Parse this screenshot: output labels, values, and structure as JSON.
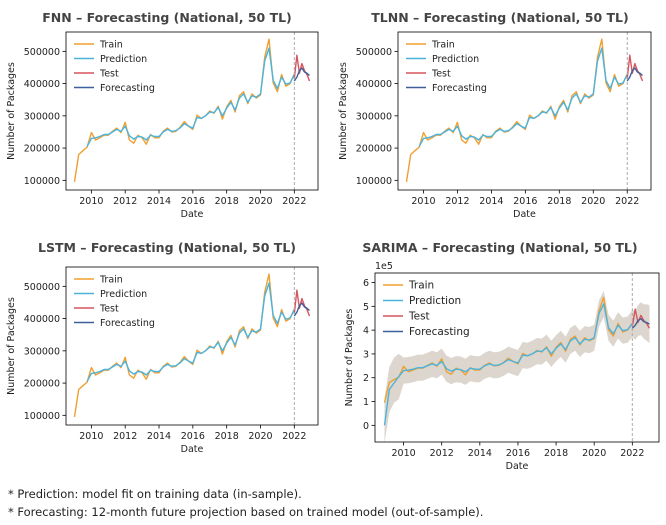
{
  "chart_data": [
    {
      "type": "line",
      "title": "FNN – Forecasting (National, 50 TL)",
      "xlabel": "Date",
      "ylabel": "Number of Packages",
      "xlim": [
        2008.5,
        2023.4
      ],
      "ylim": [
        70000,
        560000
      ],
      "xticks": [
        2010,
        2012,
        2014,
        2016,
        2018,
        2020,
        2022
      ],
      "yticks": [
        100000,
        200000,
        300000,
        400000,
        500000
      ],
      "ytick_labels": [
        "100000",
        "200000",
        "300000",
        "400000",
        "500000"
      ],
      "split_line_x": 2022.0,
      "legend": [
        "Train",
        "Prediction",
        "Test",
        "Forecasting"
      ],
      "legend_loc": "upper-left"
    },
    {
      "type": "line",
      "title": "TLNN – Forecasting (National, 50 TL)",
      "xlabel": "Date",
      "ylabel": "Number of Packages",
      "xlim": [
        2008.5,
        2023.4
      ],
      "ylim": [
        70000,
        560000
      ],
      "xticks": [
        2010,
        2012,
        2014,
        2016,
        2018,
        2020,
        2022
      ],
      "yticks": [
        100000,
        200000,
        300000,
        400000,
        500000
      ],
      "ytick_labels": [
        "100000",
        "200000",
        "300000",
        "400000",
        "500000"
      ],
      "split_line_x": 2022.0,
      "legend": [
        "Train",
        "Prediction",
        "Test",
        "Forecasting"
      ],
      "legend_loc": "upper-left"
    },
    {
      "type": "line",
      "title": "LSTM – Forecasting (National, 50 TL)",
      "xlabel": "Date",
      "ylabel": "Number of Packages",
      "xlim": [
        2008.5,
        2023.4
      ],
      "ylim": [
        70000,
        560000
      ],
      "xticks": [
        2010,
        2012,
        2014,
        2016,
        2018,
        2020,
        2022
      ],
      "yticks": [
        100000,
        200000,
        300000,
        400000,
        500000
      ],
      "ytick_labels": [
        "100000",
        "200000",
        "300000",
        "400000",
        "500000"
      ],
      "split_line_x": 2022.0,
      "legend": [
        "Train",
        "Prediction",
        "Test",
        "Forecasting"
      ],
      "legend_loc": "upper-left"
    },
    {
      "type": "line",
      "title": "SARIMA – Forecasting (National, 50 TL)",
      "xlabel": "Date",
      "ylabel": "Number of Packages",
      "xlim": [
        2008.5,
        2023.4
      ],
      "ylim": [
        -70000,
        640000
      ],
      "xticks": [
        2010,
        2012,
        2014,
        2016,
        2018,
        2020,
        2022
      ],
      "yticks": [
        0,
        100000,
        200000,
        300000,
        400000,
        500000,
        600000
      ],
      "ytick_labels": [
        "0",
        "1",
        "2",
        "3",
        "4",
        "5",
        "6"
      ],
      "y_offset_label": "1e5",
      "split_line_x": 2022.0,
      "confidence_band": true,
      "legend": [
        "Train",
        "Prediction",
        "Test",
        "Forecasting"
      ],
      "legend_loc": "upper-left"
    }
  ],
  "series_data": {
    "train": {
      "x": [
        2009.0,
        2009.25,
        2009.5,
        2009.75,
        2010.0,
        2010.25,
        2010.5,
        2010.75,
        2011.0,
        2011.25,
        2011.5,
        2011.75,
        2012.0,
        2012.25,
        2012.5,
        2012.75,
        2013.0,
        2013.25,
        2013.5,
        2013.75,
        2014.0,
        2014.25,
        2014.5,
        2014.75,
        2015.0,
        2015.25,
        2015.5,
        2015.75,
        2016.0,
        2016.25,
        2016.5,
        2016.75,
        2017.0,
        2017.25,
        2017.5,
        2017.75,
        2018.0,
        2018.25,
        2018.5,
        2018.75,
        2019.0,
        2019.25,
        2019.5,
        2019.75,
        2020.0,
        2020.25,
        2020.5,
        2020.75,
        2021.0,
        2021.25,
        2021.5,
        2021.75,
        2022.0
      ],
      "y": [
        95000,
        180000,
        192000,
        203000,
        248000,
        225000,
        232000,
        240000,
        240000,
        252000,
        262000,
        248000,
        280000,
        225000,
        215000,
        240000,
        232000,
        212000,
        242000,
        232000,
        232000,
        252000,
        262000,
        250000,
        252000,
        265000,
        282000,
        268000,
        258000,
        302000,
        292000,
        300000,
        315000,
        308000,
        330000,
        290000,
        328000,
        348000,
        312000,
        362000,
        375000,
        338000,
        368000,
        355000,
        365000,
        482000,
        538000,
        402000,
        375000,
        428000,
        392000,
        400000,
        430000
      ]
    },
    "prediction": {
      "x": [
        2009.75,
        2010.0,
        2010.25,
        2010.5,
        2010.75,
        2011.0,
        2011.25,
        2011.5,
        2011.75,
        2012.0,
        2012.25,
        2012.5,
        2012.75,
        2013.0,
        2013.25,
        2013.5,
        2013.75,
        2014.0,
        2014.25,
        2014.5,
        2014.75,
        2015.0,
        2015.25,
        2015.5,
        2015.75,
        2016.0,
        2016.25,
        2016.5,
        2016.75,
        2017.0,
        2017.25,
        2017.5,
        2017.75,
        2018.0,
        2018.25,
        2018.5,
        2018.75,
        2019.0,
        2019.25,
        2019.5,
        2019.75,
        2020.0,
        2020.25,
        2020.5,
        2020.75,
        2021.0,
        2021.25,
        2021.5,
        2021.75,
        2022.0
      ],
      "y": [
        205000,
        230000,
        232000,
        236000,
        242000,
        242000,
        250000,
        258000,
        252000,
        268000,
        238000,
        228000,
        236000,
        234000,
        225000,
        240000,
        236000,
        236000,
        250000,
        258000,
        252000,
        254000,
        263000,
        276000,
        268000,
        262000,
        295000,
        292000,
        300000,
        312000,
        310000,
        326000,
        300000,
        324000,
        342000,
        318000,
        355000,
        368000,
        342000,
        362000,
        358000,
        368000,
        470000,
        510000,
        410000,
        385000,
        420000,
        398000,
        402000,
        428000
      ]
    },
    "test": {
      "x": [
        2022.0,
        2022.15,
        2022.3,
        2022.45,
        2022.6,
        2022.75,
        2022.9
      ],
      "y": [
        415000,
        488000,
        432000,
        462000,
        440000,
        428000,
        408000
      ]
    },
    "forecasting": {
      "x": [
        2022.0,
        2022.15,
        2022.3,
        2022.45,
        2022.6,
        2022.75,
        2022.9
      ],
      "y": [
        408000,
        420000,
        440000,
        448000,
        436000,
        432000,
        425000
      ]
    }
  },
  "colors": {
    "train": "#f0a030",
    "prediction": "#4cb4dc",
    "test": "#d6555f",
    "forecasting": "#3d5f9c",
    "split_line": "#aaaaaa",
    "band": "#c9c0b4"
  },
  "footnotes": [
    "* Prediction: model fit on training data (in-sample).",
    "* Forecasting: 12-month future projection based on trained model (out-of-sample)."
  ]
}
